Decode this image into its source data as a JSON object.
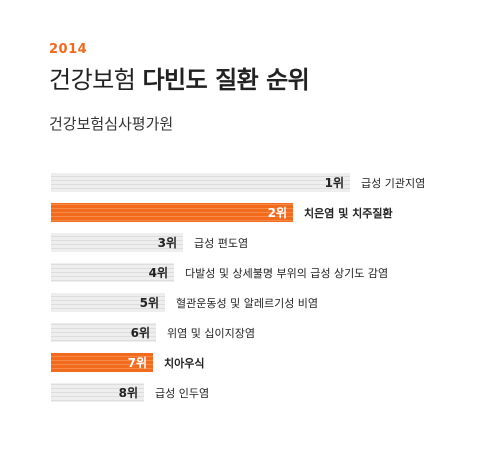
{
  "year": "2014",
  "title": {
    "prefix": "건강보험",
    "highlight": "다빈도 질환 순위"
  },
  "source": "건강보험심사평가원",
  "colors": {
    "accent": "#f26a1b",
    "bar": "#eeeeee",
    "stripe": "#dddddd",
    "text": "#222222"
  },
  "chart_data": {
    "type": "bar",
    "orientation": "horizontal",
    "title": "건강보험 다빈도 질환 순위",
    "subtitle": "건강보험심사평가원",
    "items": [
      {
        "rank": 1,
        "rank_label": "1위",
        "name": "급성 기관지염",
        "value": 1.0,
        "highlight": false
      },
      {
        "rank": 2,
        "rank_label": "2위",
        "name": "치은염 및 치주질환",
        "value": 0.81,
        "highlight": true
      },
      {
        "rank": 3,
        "rank_label": "3위",
        "name": "급성 편도염",
        "value": 0.44,
        "highlight": false
      },
      {
        "rank": 4,
        "rank_label": "4위",
        "name": "다발성 및 상세불명 부위의 급성 상기도 감염",
        "value": 0.41,
        "highlight": false
      },
      {
        "rank": 5,
        "rank_label": "5위",
        "name": "혈관운동성 및 알레르기성 비염",
        "value": 0.38,
        "highlight": false
      },
      {
        "rank": 6,
        "rank_label": "6위",
        "name": "위염 및 십이지장염",
        "value": 0.35,
        "highlight": false
      },
      {
        "rank": 7,
        "rank_label": "7위",
        "name": "치아우식",
        "value": 0.34,
        "highlight": true
      },
      {
        "rank": 8,
        "rank_label": "8위",
        "name": "급성 인두염",
        "value": 0.31,
        "highlight": false
      }
    ]
  }
}
